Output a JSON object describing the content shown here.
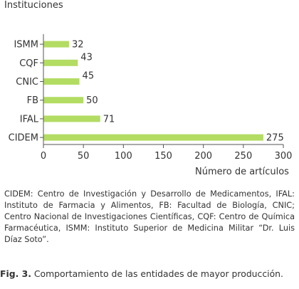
{
  "chart_data": {
    "type": "bar",
    "orientation": "horizontal",
    "title": "",
    "ylabel": "Instituciones",
    "xlabel": "Número de artículos",
    "categories": [
      "ISMM",
      "CQF",
      "CNIC",
      "FB",
      "IFAL",
      "CIDEM"
    ],
    "values": [
      32,
      43,
      45,
      50,
      71,
      275
    ],
    "xlim": [
      0,
      300
    ],
    "xticks": [
      "0",
      "50",
      "100",
      "150",
      "200",
      "250",
      "300"
    ],
    "bar_color": "#b3dc63",
    "grid": false,
    "legend": "none"
  },
  "legend_note": "CIDEM: Centro de Investigación y Desarrollo de Medicamentos, IFAL: Instituto de Farmacia y Alimentos, FB: Facultad de Biología, CNIC; Centro Nacional de Investigaciones Científicas, CQF: Centro de Química Farmacéutica, ISMM: Instituto Superior de Medicina Militar “Dr. Luis Díaz Soto”.",
  "caption": {
    "label": "Fig. 3.",
    "text": " Comportamiento de las entidades de mayor producción."
  }
}
